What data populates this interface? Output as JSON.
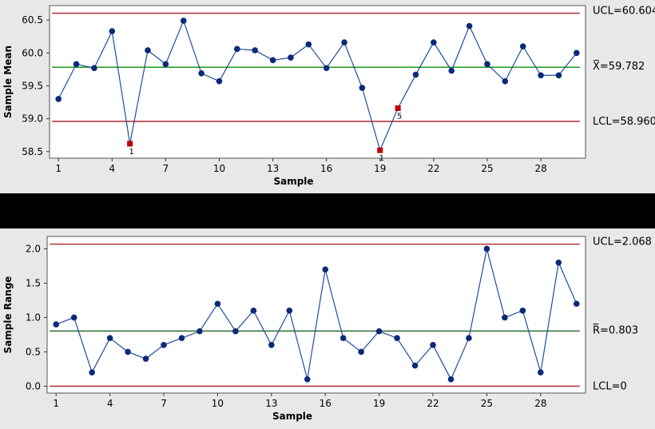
{
  "colors": {
    "background": "#e8e8e8",
    "plot_bg": "#ffffff",
    "separator": "#000000",
    "series": "#1f4e9c",
    "marker": "#0b2a78",
    "flag_marker": "#c00000",
    "control_limit": "#b03a3a",
    "center_mean": "#2ca02c",
    "center_range": "#2e6b2e"
  },
  "chart_data": [
    {
      "type": "line",
      "chart": "xbar",
      "ylabel": "Sample Mean",
      "xlabel": "Sample",
      "x_ticks": [
        1,
        4,
        7,
        10,
        13,
        16,
        19,
        22,
        25,
        28
      ],
      "x_tick_labels": [
        "1",
        "4",
        "7",
        "10",
        "13",
        "16",
        "19",
        "22",
        "25",
        "28"
      ],
      "xlim": [
        0.5,
        30.5
      ],
      "y_ticks": [
        58.5,
        59.0,
        59.5,
        60.0,
        60.5
      ],
      "y_tick_labels": [
        "58.5",
        "59.0",
        "59.5",
        "60.0",
        "60.5"
      ],
      "ylim": [
        58.4,
        60.72
      ],
      "x": [
        1,
        2,
        3,
        4,
        5,
        6,
        7,
        8,
        9,
        10,
        11,
        12,
        13,
        14,
        15,
        16,
        17,
        18,
        19,
        20,
        21,
        22,
        23,
        24,
        25,
        26,
        27,
        28,
        29,
        30
      ],
      "values": [
        59.3,
        59.83,
        59.77,
        60.33,
        58.62,
        60.04,
        59.83,
        60.49,
        59.69,
        59.57,
        60.06,
        60.04,
        59.89,
        59.93,
        60.13,
        59.77,
        60.16,
        59.47,
        58.52,
        59.16,
        59.67,
        60.16,
        59.73,
        60.41,
        59.83,
        59.57,
        60.1,
        59.66,
        59.66,
        60.0
      ],
      "flagged": [
        {
          "x": 5,
          "y": 58.62,
          "label": "1"
        },
        {
          "x": 19,
          "y": 58.52,
          "label": "1"
        },
        {
          "x": 20,
          "y": 59.16,
          "label": "5"
        }
      ],
      "ucl": {
        "value": 60.604,
        "label": "UCL=60.604"
      },
      "center": {
        "value": 59.782,
        "label": "X̅=59.782"
      },
      "lcl": {
        "value": 58.96,
        "label": "LCL=58.960"
      }
    },
    {
      "type": "line",
      "chart": "range",
      "ylabel": "Sample Range",
      "xlabel": "Sample",
      "x_ticks": [
        1,
        4,
        7,
        10,
        13,
        16,
        19,
        22,
        25,
        28
      ],
      "x_tick_labels": [
        "1",
        "4",
        "7",
        "10",
        "13",
        "16",
        "19",
        "22",
        "25",
        "28"
      ],
      "xlim": [
        0.5,
        30.5
      ],
      "y_ticks": [
        0.0,
        0.5,
        1.0,
        1.5,
        2.0
      ],
      "y_tick_labels": [
        "0.0",
        "0.5",
        "1.0",
        "1.5",
        "2.0"
      ],
      "ylim": [
        -0.1,
        2.18
      ],
      "x": [
        1,
        2,
        3,
        4,
        5,
        6,
        7,
        8,
        9,
        10,
        11,
        12,
        13,
        14,
        15,
        16,
        17,
        18,
        19,
        20,
        21,
        22,
        23,
        24,
        25,
        26,
        27,
        28,
        29,
        30
      ],
      "values": [
        0.9,
        1.0,
        0.2,
        0.7,
        0.5,
        0.4,
        0.6,
        0.7,
        0.8,
        1.2,
        0.8,
        1.1,
        0.6,
        1.1,
        0.1,
        1.7,
        0.7,
        0.5,
        0.8,
        0.7,
        0.3,
        0.6,
        0.1,
        0.7,
        2.0,
        1.0,
        1.1,
        0.2,
        1.8,
        1.2
      ],
      "flagged": [],
      "ucl": {
        "value": 2.068,
        "label": "UCL=2.068"
      },
      "center": {
        "value": 0.803,
        "label": "R̅=0.803"
      },
      "lcl": {
        "value": 0,
        "label": "LCL=0"
      }
    }
  ]
}
